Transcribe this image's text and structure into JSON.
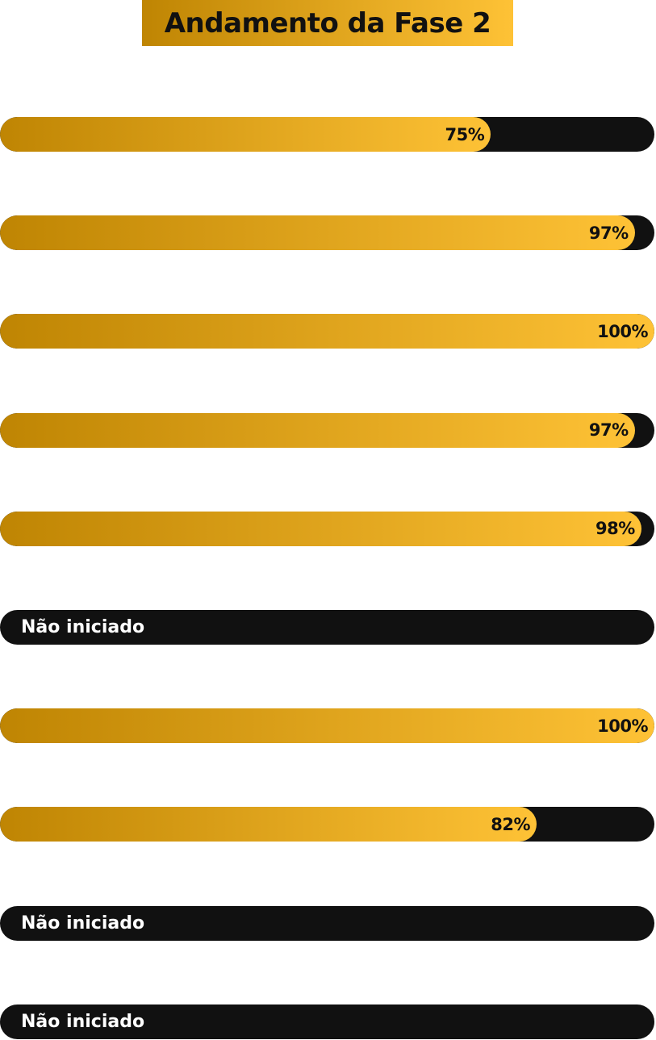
{
  "title": "Andamento da Fase 2",
  "colors": {
    "gradient_start": "#bf8503",
    "gradient_end": "#fec236",
    "track": "#111111"
  },
  "bars": [
    {
      "progress": 75,
      "label": "75%"
    },
    {
      "progress": 97,
      "label": "97%"
    },
    {
      "progress": 100,
      "label": "100%"
    },
    {
      "progress": 97,
      "label": "97%"
    },
    {
      "progress": 98,
      "label": "98%"
    },
    {
      "progress": 0,
      "label": "Não iniciado"
    },
    {
      "progress": 100,
      "label": "100%"
    },
    {
      "progress": 82,
      "label": "82%"
    },
    {
      "progress": 0,
      "label": "Não iniciado"
    },
    {
      "progress": 0,
      "label": "Não iniciado"
    }
  ]
}
